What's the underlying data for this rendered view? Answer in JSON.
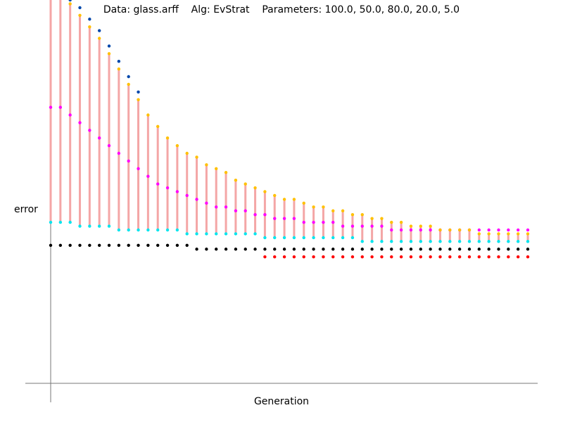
{
  "chart_data": {
    "type": "scatter",
    "title": "Data: glass.arff    Alg: EvStrat    Parameters: 100.0, 50.0, 80.0, 20.0, 5.0",
    "xlabel": "Generation",
    "ylabel": "error",
    "xlim": [
      0,
      50
    ],
    "ylim": [
      0,
      1
    ],
    "grid": false,
    "legend": "none",
    "x": [
      1,
      2,
      3,
      4,
      5,
      6,
      7,
      8,
      9,
      10,
      11,
      12,
      13,
      14,
      15,
      16,
      17,
      18,
      19,
      20,
      21,
      22,
      23,
      24,
      25,
      26,
      27,
      28,
      29,
      30,
      31,
      32,
      33,
      34,
      35,
      36,
      37,
      38,
      39,
      40,
      41,
      42,
      43,
      44,
      45,
      46,
      47,
      48,
      49,
      50
    ],
    "series": [
      {
        "color": "#ff0000",
        "values": [
          null,
          null,
          null,
          null,
          null,
          null,
          null,
          null,
          null,
          null,
          null,
          null,
          null,
          null,
          null,
          null,
          null,
          null,
          null,
          null,
          null,
          null,
          0.33,
          0.33,
          0.33,
          0.33,
          0.33,
          0.33,
          0.33,
          0.33,
          0.33,
          0.33,
          0.33,
          0.33,
          0.33,
          0.33,
          0.33,
          0.33,
          0.33,
          0.33,
          0.33,
          0.33,
          0.33,
          0.33,
          0.33,
          0.33,
          0.33,
          0.33,
          0.33,
          0.33
        ]
      },
      {
        "color": "#000000",
        "values": [
          0.36,
          0.36,
          0.36,
          0.36,
          0.36,
          0.36,
          0.36,
          0.36,
          0.36,
          0.36,
          0.36,
          0.36,
          0.36,
          0.36,
          0.36,
          0.35,
          0.35,
          0.35,
          0.35,
          0.35,
          0.35,
          0.35,
          0.35,
          0.35,
          0.35,
          0.35,
          0.35,
          0.35,
          0.35,
          0.35,
          0.35,
          0.35,
          0.35,
          0.35,
          0.35,
          0.35,
          0.35,
          0.35,
          0.35,
          0.35,
          0.35,
          0.35,
          0.35,
          0.35,
          0.35,
          0.35,
          0.35,
          0.35,
          0.35,
          0.35
        ]
      },
      {
        "color": "#00e5ee",
        "values": [
          0.42,
          0.42,
          0.42,
          0.41,
          0.41,
          0.41,
          0.41,
          0.4,
          0.4,
          0.4,
          0.4,
          0.4,
          0.4,
          0.4,
          0.39,
          0.39,
          0.39,
          0.39,
          0.39,
          0.39,
          0.39,
          0.39,
          0.38,
          0.38,
          0.38,
          0.38,
          0.38,
          0.38,
          0.38,
          0.38,
          0.38,
          0.38,
          0.37,
          0.37,
          0.37,
          0.37,
          0.37,
          0.37,
          0.37,
          0.37,
          0.37,
          0.37,
          0.37,
          0.37,
          0.37,
          0.37,
          0.37,
          0.37,
          0.37,
          0.37
        ]
      },
      {
        "color": "#ff00ff",
        "values": [
          0.72,
          0.72,
          0.7,
          0.68,
          0.66,
          0.64,
          0.62,
          0.6,
          0.58,
          0.56,
          0.54,
          0.52,
          0.51,
          0.5,
          0.49,
          0.48,
          0.47,
          0.46,
          0.46,
          0.45,
          0.45,
          0.44,
          0.44,
          0.43,
          0.43,
          0.43,
          0.42,
          0.42,
          0.42,
          0.42,
          0.41,
          0.41,
          0.41,
          0.41,
          0.41,
          0.4,
          0.4,
          0.4,
          0.4,
          0.4,
          0.4,
          0.4,
          0.4,
          0.4,
          0.4,
          0.4,
          0.4,
          0.4,
          0.4,
          0.4
        ]
      },
      {
        "color": "#ffc000",
        "values": [
          1.02,
          1.01,
          0.99,
          0.96,
          0.93,
          0.9,
          0.86,
          0.82,
          0.78,
          0.74,
          0.7,
          0.67,
          0.64,
          0.62,
          0.6,
          0.59,
          0.57,
          0.56,
          0.55,
          0.53,
          0.52,
          0.51,
          0.5,
          0.49,
          0.48,
          0.48,
          0.47,
          0.46,
          0.46,
          0.45,
          0.45,
          0.44,
          0.44,
          0.43,
          0.43,
          0.42,
          0.42,
          0.41,
          0.41,
          0.41,
          0.4,
          0.4,
          0.4,
          0.4,
          0.39,
          0.39,
          0.39,
          0.39,
          0.39,
          0.39
        ]
      },
      {
        "color": "#0047ab",
        "values": [
          1.03,
          1.02,
          1.0,
          0.98,
          0.95,
          0.92,
          0.88,
          0.84,
          0.8,
          0.76,
          null,
          null,
          null,
          null,
          null,
          null,
          null,
          null,
          null,
          null,
          null,
          null,
          null,
          null,
          null,
          null,
          null,
          null,
          null,
          null,
          null,
          null,
          null,
          null,
          null,
          null,
          null,
          null,
          null,
          null,
          null,
          null,
          null,
          null,
          null,
          null,
          null,
          null,
          null,
          null
        ]
      }
    ]
  }
}
